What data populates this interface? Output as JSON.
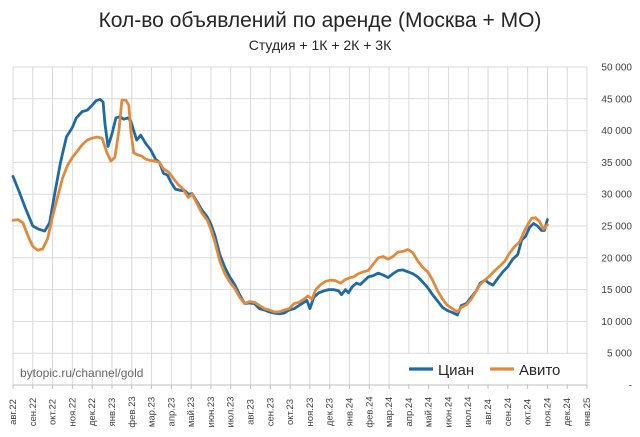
{
  "chart_data": {
    "type": "line",
    "title": "Кол-во объявлений по аренде (Москва + МО)",
    "subtitle": "Студия + 1К + 2К + 3К",
    "watermark": "bytopic.ru/channel/gold",
    "ylim": [
      0,
      50000
    ],
    "yticks": [
      {
        "v": 0,
        "label": "-"
      },
      {
        "v": 5000,
        "label": "5 000"
      },
      {
        "v": 10000,
        "label": "10 000"
      },
      {
        "v": 15000,
        "label": "15 000"
      },
      {
        "v": 20000,
        "label": "20 000"
      },
      {
        "v": 25000,
        "label": "25 000"
      },
      {
        "v": 30000,
        "label": "30 000"
      },
      {
        "v": 35000,
        "label": "35 000"
      },
      {
        "v": 40000,
        "label": "40 000"
      },
      {
        "v": 45000,
        "label": "45 000"
      },
      {
        "v": 50000,
        "label": "50 000"
      }
    ],
    "grid": true,
    "legend_position": "bottom-right",
    "xlim": [
      0,
      29
    ],
    "xticks": [
      {
        "m": 0,
        "label": "авг.22"
      },
      {
        "m": 1,
        "label": "сен.22"
      },
      {
        "m": 2,
        "label": "окт.22"
      },
      {
        "m": 3,
        "label": "ноя.22"
      },
      {
        "m": 4,
        "label": "дек.22"
      },
      {
        "m": 5,
        "label": "янв.23"
      },
      {
        "m": 6,
        "label": "фев.23"
      },
      {
        "m": 7,
        "label": "мар.23"
      },
      {
        "m": 8,
        "label": "апр.23"
      },
      {
        "m": 9,
        "label": "май.23"
      },
      {
        "m": 10,
        "label": "июн.23"
      },
      {
        "m": 11,
        "label": "июл.23"
      },
      {
        "m": 12,
        "label": "авг.23"
      },
      {
        "m": 13,
        "label": "сен.23"
      },
      {
        "m": 14,
        "label": "окт.23"
      },
      {
        "m": 15,
        "label": "ноя.23"
      },
      {
        "m": 16,
        "label": "дек.23"
      },
      {
        "m": 17,
        "label": "янв.24"
      },
      {
        "m": 18,
        "label": "фев.24"
      },
      {
        "m": 19,
        "label": "мар.24"
      },
      {
        "m": 20,
        "label": "апр.24"
      },
      {
        "m": 21,
        "label": "май.24"
      },
      {
        "m": 22,
        "label": "июн.24"
      },
      {
        "m": 23,
        "label": "июл.24"
      },
      {
        "m": 24,
        "label": "авг.24"
      },
      {
        "m": 25,
        "label": "сен.24"
      },
      {
        "m": 26,
        "label": "окт.24"
      },
      {
        "m": 27,
        "label": "ноя.24"
      },
      {
        "m": 28,
        "label": "дек.24"
      },
      {
        "m": 29,
        "label": "янв.25"
      }
    ],
    "series": [
      {
        "name": "Циан",
        "color": "#1f6aa5",
        "points": [
          [
            0,
            32800
          ],
          [
            0.3,
            30500
          ],
          [
            0.6,
            28000
          ],
          [
            1,
            25000
          ],
          [
            1.3,
            24500
          ],
          [
            1.6,
            24200
          ],
          [
            1.85,
            25500
          ],
          [
            2.1,
            30000
          ],
          [
            2.4,
            35000
          ],
          [
            2.7,
            39000
          ],
          [
            3,
            40500
          ],
          [
            3.2,
            42000
          ],
          [
            3.5,
            43000
          ],
          [
            3.75,
            43200
          ],
          [
            4,
            44000
          ],
          [
            4.2,
            44700
          ],
          [
            4.4,
            44900
          ],
          [
            4.55,
            44500
          ],
          [
            4.65,
            41000
          ],
          [
            4.8,
            37500
          ],
          [
            5,
            39500
          ],
          [
            5.2,
            42000
          ],
          [
            5.4,
            42200
          ],
          [
            5.6,
            41800
          ],
          [
            5.8,
            42000
          ],
          [
            5.95,
            41500
          ],
          [
            6.1,
            40000
          ],
          [
            6.25,
            38500
          ],
          [
            6.45,
            39300
          ],
          [
            6.7,
            38000
          ],
          [
            6.95,
            37000
          ],
          [
            7.2,
            35500
          ],
          [
            7.4,
            35000
          ],
          [
            7.6,
            33300
          ],
          [
            7.8,
            33000
          ],
          [
            8,
            31800
          ],
          [
            8.2,
            30800
          ],
          [
            8.45,
            30600
          ],
          [
            8.7,
            30500
          ],
          [
            8.85,
            30000
          ],
          [
            9.05,
            30100
          ],
          [
            9.3,
            28800
          ],
          [
            9.55,
            27500
          ],
          [
            9.8,
            26500
          ],
          [
            10,
            25300
          ],
          [
            10.2,
            23500
          ],
          [
            10.45,
            20500
          ],
          [
            10.7,
            18500
          ],
          [
            10.95,
            17000
          ],
          [
            11.2,
            15800
          ],
          [
            11.45,
            14200
          ],
          [
            11.7,
            12800
          ],
          [
            11.95,
            12900
          ],
          [
            12.2,
            12800
          ],
          [
            12.45,
            12000
          ],
          [
            12.7,
            11800
          ],
          [
            12.95,
            11500
          ],
          [
            13.2,
            11300
          ],
          [
            13.45,
            11200
          ],
          [
            13.7,
            11300
          ],
          [
            13.95,
            11800
          ],
          [
            14.2,
            12000
          ],
          [
            14.45,
            12500
          ],
          [
            14.7,
            13000
          ],
          [
            14.85,
            13300
          ],
          [
            15,
            12000
          ],
          [
            15.2,
            13800
          ],
          [
            15.45,
            14500
          ],
          [
            15.7,
            14800
          ],
          [
            15.95,
            15000
          ],
          [
            16.2,
            15000
          ],
          [
            16.45,
            14800
          ],
          [
            16.6,
            14200
          ],
          [
            16.8,
            15000
          ],
          [
            16.95,
            14500
          ],
          [
            17.15,
            15500
          ],
          [
            17.35,
            16000
          ],
          [
            17.55,
            15800
          ],
          [
            17.75,
            16400
          ],
          [
            17.95,
            17000
          ],
          [
            18.2,
            17200
          ],
          [
            18.45,
            17600
          ],
          [
            18.7,
            17300
          ],
          [
            18.95,
            16900
          ],
          [
            19.2,
            17500
          ],
          [
            19.45,
            18000
          ],
          [
            19.7,
            18100
          ],
          [
            19.95,
            17800
          ],
          [
            20.2,
            17500
          ],
          [
            20.45,
            17000
          ],
          [
            20.7,
            16200
          ],
          [
            20.95,
            15300
          ],
          [
            21.2,
            14200
          ],
          [
            21.45,
            13200
          ],
          [
            21.7,
            12200
          ],
          [
            21.95,
            11700
          ],
          [
            22.2,
            11400
          ],
          [
            22.45,
            11000
          ],
          [
            22.65,
            12500
          ],
          [
            22.9,
            12800
          ],
          [
            23.15,
            13800
          ],
          [
            23.4,
            14800
          ],
          [
            23.6,
            16000
          ],
          [
            23.85,
            16500
          ],
          [
            24.05,
            16000
          ],
          [
            24.25,
            15700
          ],
          [
            24.5,
            16800
          ],
          [
            24.75,
            17800
          ],
          [
            25,
            18600
          ],
          [
            25.25,
            19800
          ],
          [
            25.5,
            20500
          ],
          [
            25.7,
            22800
          ],
          [
            25.9,
            23400
          ],
          [
            26.1,
            24800
          ],
          [
            26.3,
            25400
          ],
          [
            26.5,
            25000
          ],
          [
            26.7,
            24300
          ],
          [
            26.85,
            24300
          ],
          [
            27,
            26000
          ]
        ]
      },
      {
        "name": "Авито",
        "color": "#e08a3c",
        "points": [
          [
            0,
            25900
          ],
          [
            0.25,
            26000
          ],
          [
            0.5,
            25500
          ],
          [
            0.75,
            23500
          ],
          [
            1,
            21800
          ],
          [
            1.25,
            21200
          ],
          [
            1.5,
            21400
          ],
          [
            1.75,
            23000
          ],
          [
            2,
            26500
          ],
          [
            2.25,
            29500
          ],
          [
            2.5,
            32500
          ],
          [
            2.75,
            34500
          ],
          [
            3,
            35800
          ],
          [
            3.25,
            36800
          ],
          [
            3.5,
            37800
          ],
          [
            3.75,
            38500
          ],
          [
            4,
            38800
          ],
          [
            4.25,
            39000
          ],
          [
            4.5,
            38800
          ],
          [
            4.75,
            36500
          ],
          [
            4.95,
            35200
          ],
          [
            5.15,
            35800
          ],
          [
            5.35,
            40000
          ],
          [
            5.5,
            44800
          ],
          [
            5.7,
            44800
          ],
          [
            5.85,
            44000
          ],
          [
            5.95,
            40000
          ],
          [
            6.1,
            36500
          ],
          [
            6.3,
            36200
          ],
          [
            6.5,
            36000
          ],
          [
            6.7,
            35500
          ],
          [
            6.95,
            35300
          ],
          [
            7.2,
            35200
          ],
          [
            7.4,
            35000
          ],
          [
            7.6,
            34000
          ],
          [
            7.85,
            33500
          ],
          [
            8.1,
            32500
          ],
          [
            8.35,
            31500
          ],
          [
            8.6,
            30800
          ],
          [
            8.85,
            29500
          ],
          [
            9.05,
            30000
          ],
          [
            9.3,
            28500
          ],
          [
            9.55,
            27000
          ],
          [
            9.8,
            26000
          ],
          [
            10,
            24500
          ],
          [
            10.2,
            22500
          ],
          [
            10.45,
            19500
          ],
          [
            10.7,
            17500
          ],
          [
            10.95,
            16200
          ],
          [
            11.2,
            15200
          ],
          [
            11.45,
            13800
          ],
          [
            11.7,
            12800
          ],
          [
            11.95,
            13100
          ],
          [
            12.2,
            13000
          ],
          [
            12.45,
            12500
          ],
          [
            12.7,
            12000
          ],
          [
            12.95,
            11800
          ],
          [
            13.2,
            11500
          ],
          [
            13.45,
            11500
          ],
          [
            13.7,
            11800
          ],
          [
            13.95,
            12000
          ],
          [
            14.2,
            12800
          ],
          [
            14.45,
            13000
          ],
          [
            14.7,
            13500
          ],
          [
            14.9,
            14000
          ],
          [
            15.1,
            13500
          ],
          [
            15.3,
            15000
          ],
          [
            15.55,
            15800
          ],
          [
            15.8,
            16300
          ],
          [
            16.05,
            16500
          ],
          [
            16.3,
            16400
          ],
          [
            16.55,
            16000
          ],
          [
            16.75,
            16500
          ],
          [
            16.95,
            16800
          ],
          [
            17.2,
            17000
          ],
          [
            17.45,
            17500
          ],
          [
            17.7,
            17800
          ],
          [
            17.95,
            18000
          ],
          [
            18.2,
            19000
          ],
          [
            18.45,
            20000
          ],
          [
            18.7,
            20200
          ],
          [
            18.95,
            19800
          ],
          [
            19.2,
            20200
          ],
          [
            19.45,
            20900
          ],
          [
            19.7,
            21000
          ],
          [
            19.95,
            21300
          ],
          [
            20.2,
            20800
          ],
          [
            20.45,
            19500
          ],
          [
            20.7,
            18500
          ],
          [
            20.95,
            17800
          ],
          [
            21.2,
            16500
          ],
          [
            21.45,
            14800
          ],
          [
            21.7,
            13500
          ],
          [
            21.95,
            12500
          ],
          [
            22.2,
            12000
          ],
          [
            22.45,
            11500
          ],
          [
            22.65,
            12200
          ],
          [
            22.9,
            12600
          ],
          [
            23.15,
            13500
          ],
          [
            23.4,
            14800
          ],
          [
            23.6,
            15800
          ],
          [
            23.85,
            16500
          ],
          [
            24.1,
            17200
          ],
          [
            24.35,
            18000
          ],
          [
            24.6,
            18700
          ],
          [
            24.85,
            19500
          ],
          [
            25.1,
            20800
          ],
          [
            25.35,
            21800
          ],
          [
            25.6,
            22500
          ],
          [
            25.8,
            24000
          ],
          [
            26,
            25200
          ],
          [
            26.2,
            26200
          ],
          [
            26.4,
            26300
          ],
          [
            26.6,
            25700
          ],
          [
            26.8,
            24500
          ],
          [
            27,
            25200
          ]
        ]
      }
    ]
  }
}
